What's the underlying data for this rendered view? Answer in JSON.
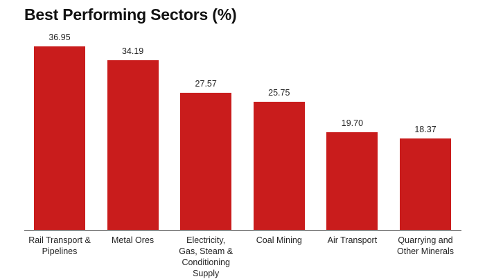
{
  "chart_data": {
    "type": "bar",
    "title": "Best Performing Sectors (%)",
    "categories": [
      "Rail Transport & Pipelines",
      "Metal Ores",
      "Electricity, Gas, Steam & Conditioning Supply",
      "Coal Mining",
      "Air Transport",
      "Quarrying and Other Minerals"
    ],
    "values": [
      36.95,
      34.19,
      27.57,
      25.75,
      19.7,
      18.37
    ],
    "value_labels": [
      "36.95",
      "34.19",
      "27.57",
      "25.75",
      "19.70",
      "18.37"
    ],
    "xlabel": "",
    "ylabel": "",
    "ylim": [
      0,
      37
    ],
    "grid": false,
    "bar_color": "#c91c1c"
  }
}
